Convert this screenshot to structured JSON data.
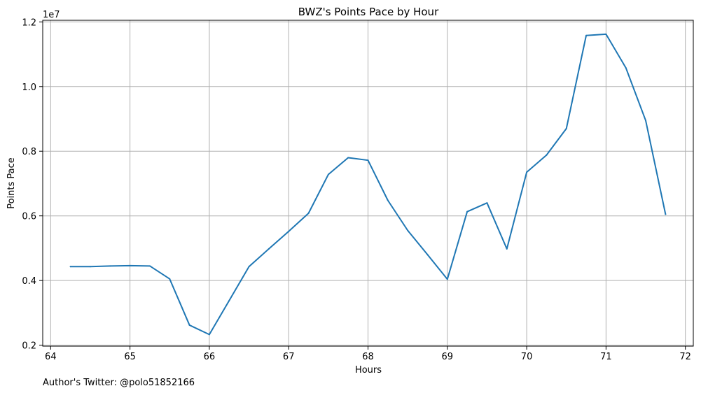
{
  "chart_data": {
    "type": "line",
    "title": "BWZ's Points Pace by Hour",
    "xlabel": "Hours",
    "ylabel": "Points Pace",
    "y_offset_label": "1e7",
    "footnote": "Author's Twitter: @polo51852166",
    "xlim": [
      63.9,
      72.1
    ],
    "ylim": [
      1.97,
      12.05
    ],
    "x_ticks": [
      64,
      65,
      66,
      67,
      68,
      69,
      70,
      71,
      72
    ],
    "y_ticks": [
      0.2,
      0.4,
      0.6,
      0.8,
      1.0,
      1.2
    ],
    "y_tick_labels": [
      "0.2",
      "0.4",
      "0.6",
      "0.8",
      "1.0",
      "1.2"
    ],
    "grid": true,
    "series": [
      {
        "color": "#1f77b4",
        "x": [
          64.25,
          64.5,
          64.75,
          65.0,
          65.25,
          65.5,
          65.75,
          66.0,
          66.25,
          66.5,
          66.75,
          67.0,
          67.25,
          67.5,
          67.75,
          68.0,
          68.25,
          68.5,
          68.75,
          69.0,
          69.25,
          69.5,
          69.75,
          70.0,
          70.25,
          70.5,
          70.75,
          71.0,
          71.25,
          71.5,
          71.75
        ],
        "y": [
          4.43,
          4.43,
          4.45,
          4.46,
          4.45,
          4.05,
          2.62,
          2.33,
          3.38,
          4.43,
          4.98,
          5.52,
          6.08,
          7.28,
          7.8,
          7.72,
          6.48,
          5.55,
          4.8,
          4.04,
          6.13,
          6.4,
          4.98,
          7.35,
          7.88,
          8.7,
          11.58,
          11.62,
          10.58,
          8.95,
          6.05
        ]
      }
    ]
  }
}
